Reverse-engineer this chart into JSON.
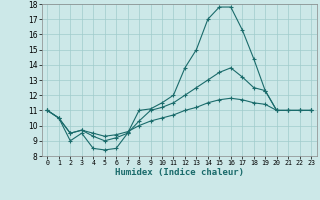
{
  "title": "",
  "xlabel": "Humidex (Indice chaleur)",
  "ylabel": "",
  "bg_color": "#cce8e8",
  "line_color": "#1a6b6b",
  "grid_color": "#a0cccc",
  "xlim": [
    -0.5,
    23.5
  ],
  "ylim": [
    8,
    18
  ],
  "yticks": [
    8,
    9,
    10,
    11,
    12,
    13,
    14,
    15,
    16,
    17,
    18
  ],
  "xticks": [
    0,
    1,
    2,
    3,
    4,
    5,
    6,
    7,
    8,
    9,
    10,
    11,
    12,
    13,
    14,
    15,
    16,
    17,
    18,
    19,
    20,
    21,
    22,
    23
  ],
  "series": [
    {
      "x": [
        0,
        1,
        2,
        3,
        4,
        5,
        6,
        7,
        8,
        9,
        10,
        11,
        12,
        13,
        14,
        15,
        16,
        17,
        18,
        19,
        20,
        21,
        22,
        23
      ],
      "y": [
        11.0,
        10.5,
        9.0,
        9.5,
        8.5,
        8.4,
        8.5,
        9.5,
        11.0,
        11.1,
        11.5,
        12.0,
        13.8,
        15.0,
        17.0,
        17.8,
        17.8,
        16.3,
        14.4,
        12.3,
        11.0,
        11.0,
        11.0,
        11.0
      ]
    },
    {
      "x": [
        0,
        1,
        2,
        3,
        4,
        5,
        6,
        7,
        8,
        9,
        10,
        11,
        12,
        13,
        14,
        15,
        16,
        17,
        18,
        19,
        20,
        21,
        22,
        23
      ],
      "y": [
        11.0,
        10.5,
        9.5,
        9.7,
        9.3,
        9.0,
        9.2,
        9.5,
        10.3,
        11.0,
        11.2,
        11.5,
        12.0,
        12.5,
        13.0,
        13.5,
        13.8,
        13.2,
        12.5,
        12.3,
        11.0,
        11.0,
        11.0,
        11.0
      ]
    },
    {
      "x": [
        0,
        1,
        2,
        3,
        4,
        5,
        6,
        7,
        8,
        9,
        10,
        11,
        12,
        13,
        14,
        15,
        16,
        17,
        18,
        19,
        20,
        21,
        22,
        23
      ],
      "y": [
        11.0,
        10.5,
        9.5,
        9.7,
        9.5,
        9.3,
        9.4,
        9.6,
        10.0,
        10.3,
        10.5,
        10.7,
        11.0,
        11.2,
        11.5,
        11.7,
        11.8,
        11.7,
        11.5,
        11.4,
        11.0,
        11.0,
        11.0,
        11.0
      ]
    }
  ]
}
